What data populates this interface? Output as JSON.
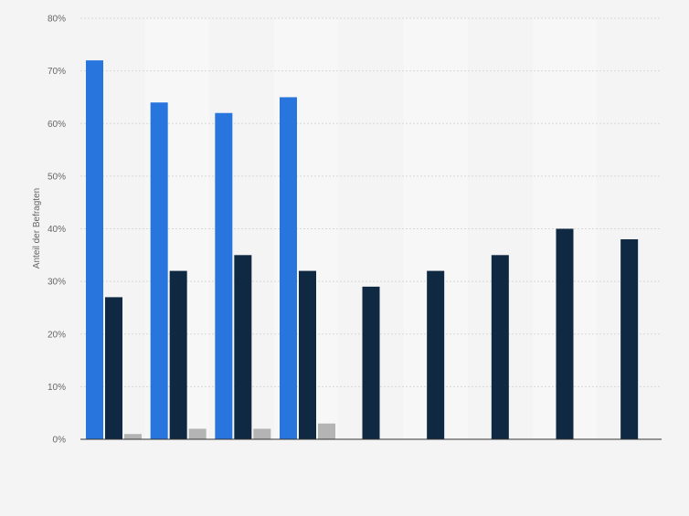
{
  "chart_data": {
    "type": "bar",
    "title": "",
    "xlabel": "",
    "ylabel": "Anteil der Befragten",
    "ylim": [
      0,
      80
    ],
    "yticks": [
      0,
      10,
      20,
      30,
      40,
      50,
      60,
      70,
      80
    ],
    "ytick_labels": [
      "0%",
      "10%",
      "20%",
      "30%",
      "40%",
      "50%",
      "60%",
      "70%",
      "80%"
    ],
    "grid": true,
    "legend": "none",
    "categories": [
      "",
      "",
      "",
      "",
      "",
      "",
      "",
      "",
      ""
    ],
    "series": [
      {
        "color": "#2876dd",
        "values": [
          72,
          64,
          62,
          65,
          null,
          null,
          null,
          null,
          null
        ]
      },
      {
        "color": "#0f2942",
        "values": [
          27,
          32,
          35,
          32,
          29,
          32,
          35,
          40,
          38
        ]
      },
      {
        "color": "#b4b4b4",
        "values": [
          1,
          2,
          2,
          3,
          null,
          null,
          null,
          null,
          null
        ]
      }
    ],
    "band_colors": [
      "#f4f4f4",
      "#f7f7f7"
    ]
  }
}
